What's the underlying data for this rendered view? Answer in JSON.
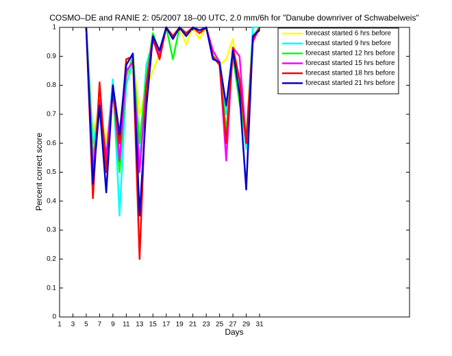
{
  "chart_data": {
    "type": "line",
    "title": "COSMO–DE and RANIE 2: 05/2007 18–00 UTC, 2.0 mm/6h for \"Danube downriver of Schwabelweis\"",
    "xlabel": "Days",
    "ylabel": "Percent correct score",
    "x": [
      1,
      2,
      3,
      4,
      5,
      6,
      7,
      8,
      9,
      10,
      11,
      12,
      13,
      14,
      15,
      16,
      17,
      18,
      19,
      20,
      21,
      22,
      23,
      24,
      25,
      26,
      27,
      28,
      29,
      30,
      31
    ],
    "xlim": [
      1,
      53.5
    ],
    "xticks": [
      1,
      3,
      5,
      7,
      9,
      11,
      13,
      15,
      17,
      19,
      21,
      23,
      25,
      27,
      29,
      31
    ],
    "ylim": [
      0,
      1
    ],
    "yticks": [
      0,
      0.1,
      0.2,
      0.3,
      0.4,
      0.5,
      0.6,
      0.7,
      0.8,
      0.9,
      1
    ],
    "legend_position": "upper right",
    "series": [
      {
        "name": "forecast started 6 hrs before",
        "color": "#ffff00",
        "values": [
          null,
          null,
          null,
          null,
          1,
          0.63,
          0.73,
          0.6,
          0.78,
          0.58,
          0.82,
          0.9,
          0.7,
          0.79,
          0.85,
          0.91,
          1,
          0.96,
          1,
          0.94,
          1,
          0.96,
          1,
          0.91,
          0.87,
          0.89,
          0.96,
          0.8,
          0.6,
          0.96,
          1
        ]
      },
      {
        "name": "forecast started 9 hrs before",
        "color": "#00ffff",
        "values": [
          null,
          null,
          null,
          null,
          1,
          0.6,
          0.72,
          0.56,
          0.82,
          0.35,
          0.8,
          0.88,
          0.53,
          0.87,
          0.95,
          0.92,
          1,
          0.96,
          1,
          0.97,
          1,
          0.99,
          1,
          0.9,
          0.88,
          0.7,
          0.93,
          0.78,
          0.58,
          1,
          1
        ]
      },
      {
        "name": "forecast started 12 hrs before",
        "color": "#00ff00",
        "values": [
          null,
          null,
          null,
          null,
          1,
          0.55,
          0.72,
          0.52,
          0.78,
          0.5,
          0.83,
          0.9,
          0.6,
          0.83,
          0.98,
          0.91,
          1,
          0.89,
          1,
          0.97,
          1,
          0.98,
          1,
          0.9,
          0.88,
          0.64,
          0.9,
          0.74,
          0.62,
          0.97,
          1
        ]
      },
      {
        "name": "forecast started 15 hrs before",
        "color": "#ff00ff",
        "values": [
          null,
          null,
          null,
          null,
          1,
          0.5,
          0.75,
          0.55,
          0.8,
          0.54,
          0.85,
          0.88,
          0.5,
          0.8,
          0.97,
          0.9,
          1,
          0.97,
          1,
          0.98,
          1,
          0.99,
          1,
          0.92,
          0.88,
          0.54,
          0.93,
          0.9,
          0.6,
          0.95,
          1
        ]
      },
      {
        "name": "forecast started 18 hrs before",
        "color": "#ff0000",
        "values": [
          null,
          null,
          null,
          null,
          1,
          0.41,
          0.81,
          0.5,
          0.78,
          0.6,
          0.89,
          0.9,
          0.2,
          0.79,
          0.96,
          0.89,
          1,
          0.97,
          1,
          0.98,
          1,
          0.98,
          1,
          0.9,
          0.87,
          0.6,
          0.93,
          0.82,
          0.6,
          0.96,
          1
        ]
      },
      {
        "name": "forecast started 21 hrs before",
        "color": "#0000cc",
        "values": [
          null,
          null,
          null,
          null,
          1,
          0.46,
          0.73,
          0.43,
          0.8,
          0.63,
          0.87,
          0.91,
          0.35,
          0.72,
          0.97,
          0.92,
          1,
          0.96,
          1,
          0.97,
          1,
          0.99,
          1,
          0.89,
          0.88,
          0.73,
          0.92,
          0.77,
          0.44,
          0.97,
          0.99
        ]
      }
    ]
  }
}
